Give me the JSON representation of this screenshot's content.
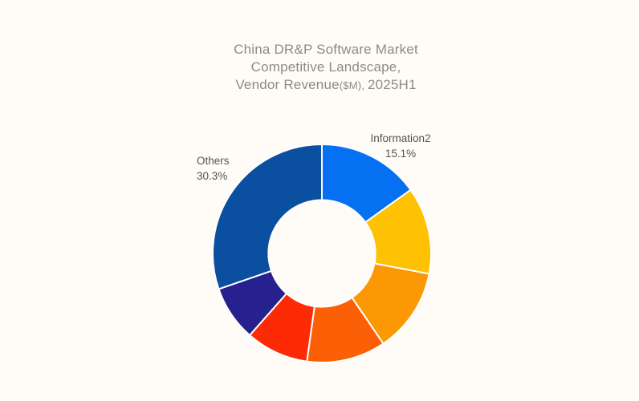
{
  "background_color": "#FFFCF8",
  "title": {
    "line1": "China DR&P Software Market",
    "line2": "Competitive Landscape,",
    "line3_prefix": "Vendor Revenue",
    "line3_unit": "($M), ",
    "line3_suffix": "2025H1",
    "color": "#8C8A87"
  },
  "labels": {
    "information2": {
      "name": "Information2",
      "pct": "15.1%"
    },
    "others": {
      "name": "Others",
      "pct": "30.3%"
    }
  },
  "chart_data": {
    "type": "pie",
    "subtype": "donut",
    "title": "China DR&P Software Market Competitive Landscape, Vendor Revenue($M), 2025H1",
    "start_angle_deg": 0,
    "direction": "clockwise",
    "inner_radius_ratio": 0.49,
    "border_color": "#FFFFFF",
    "legend": "none",
    "labeled_slices_only": [
      "Information2",
      "Others"
    ],
    "slices": [
      {
        "name": "Information2",
        "value_pct": 15.1,
        "color": "#0670F2",
        "label_visible": true,
        "label_text": "Information2 15.1%"
      },
      {
        "name": "",
        "value_pct": 12.9,
        "color": "#FFC103",
        "label_visible": false
      },
      {
        "name": "",
        "value_pct": 12.5,
        "color": "#FC9803",
        "label_visible": false
      },
      {
        "name": "",
        "value_pct": 11.7,
        "color": "#FC6006",
        "label_visible": false
      },
      {
        "name": "",
        "value_pct": 9.3,
        "color": "#FC2B05",
        "label_visible": false
      },
      {
        "name": "",
        "value_pct": 8.2,
        "color": "#26218E",
        "label_visible": false
      },
      {
        "name": "Others",
        "value_pct": 30.3,
        "color": "#0B4FA0",
        "label_visible": true,
        "label_text": "Others 30.3%"
      }
    ]
  }
}
